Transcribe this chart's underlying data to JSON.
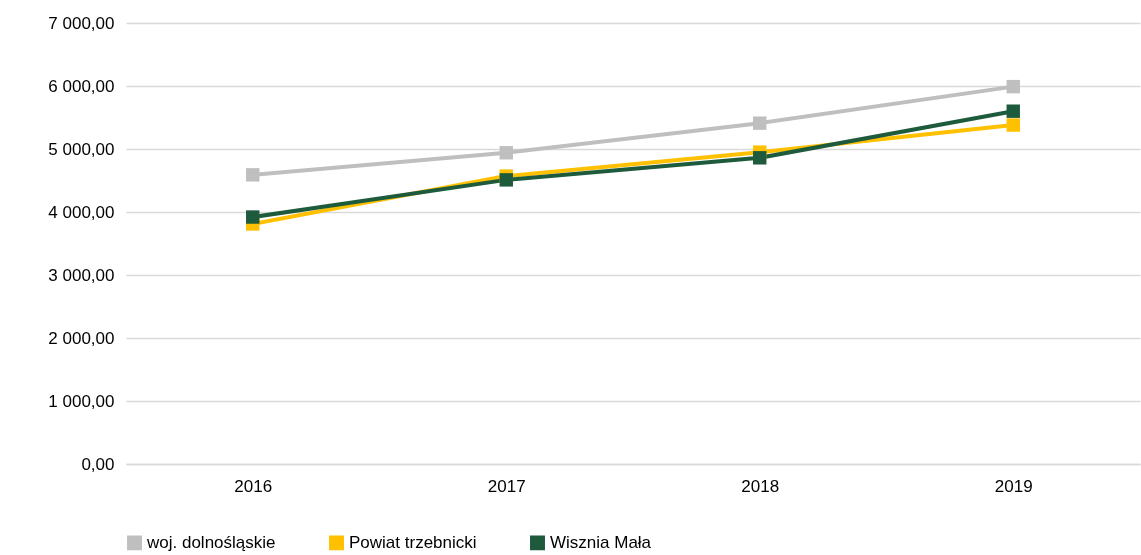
{
  "chart_data": {
    "type": "line",
    "categories": [
      "2016",
      "2017",
      "2018",
      "2019"
    ],
    "series": [
      {
        "name": "woj. dolnośląskie",
        "color": "#bfbfbf",
        "values": [
          4590,
          4940,
          5410,
          5990
        ]
      },
      {
        "name": "Powiat trzebnicki",
        "color": "#ffc000",
        "values": [
          3810,
          4570,
          4950,
          5380
        ]
      },
      {
        "name": "Wisznia Mała",
        "color": "#1e5a3c",
        "values": [
          3920,
          4510,
          4860,
          5600
        ]
      }
    ],
    "ylim": [
      0,
      7000
    ],
    "yticks": [
      {
        "value": 0,
        "label": "0,00"
      },
      {
        "value": 1000,
        "label": "1 000,00"
      },
      {
        "value": 2000,
        "label": "2 000,00"
      },
      {
        "value": 3000,
        "label": "3 000,00"
      },
      {
        "value": 4000,
        "label": "4 000,00"
      },
      {
        "value": 5000,
        "label": "5 000,00"
      },
      {
        "value": 6000,
        "label": "6 000,00"
      },
      {
        "value": 7000,
        "label": "7 000,00"
      }
    ],
    "grid": "y",
    "legend": "bottom",
    "marker": "square",
    "line_style": "solid"
  }
}
